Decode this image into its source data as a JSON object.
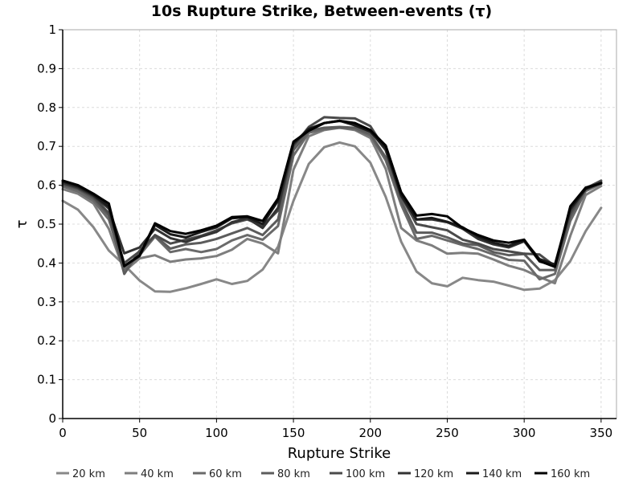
{
  "chart_data": {
    "type": "line",
    "title": "10s Rupture Strike, Between-events (τ)",
    "xlabel": "Rupture Strike",
    "ylabel": "τ",
    "xlim": [
      0,
      360
    ],
    "ylim": [
      0,
      1
    ],
    "xticks": [
      0,
      50,
      100,
      150,
      200,
      250,
      300,
      350
    ],
    "yticks": [
      0,
      0.1,
      0.2,
      0.3,
      0.4,
      0.5,
      0.6,
      0.7,
      0.8,
      0.9,
      1
    ],
    "grid": true,
    "legend_position": "bottom",
    "x": [
      0,
      10,
      20,
      30,
      40,
      50,
      60,
      70,
      80,
      90,
      100,
      110,
      120,
      130,
      140,
      150,
      160,
      170,
      180,
      190,
      200,
      210,
      220,
      230,
      240,
      250,
      260,
      270,
      280,
      290,
      300,
      310,
      320,
      330,
      340,
      350
    ],
    "series": [
      {
        "name": "20 km",
        "color": "#888888",
        "values": [
          0.56,
          0.537,
          0.492,
          0.432,
          0.395,
          0.355,
          0.327,
          0.326,
          0.335,
          0.346,
          0.358,
          0.346,
          0.354,
          0.383,
          0.442,
          0.56,
          0.655,
          0.698,
          0.71,
          0.7,
          0.658,
          0.57,
          0.455,
          0.378,
          0.348,
          0.34,
          0.362,
          0.356,
          0.352,
          0.342,
          0.331,
          0.334,
          0.356,
          0.405,
          0.482,
          0.542
        ]
      },
      {
        "name": "40 km",
        "color": "#7e7e7e",
        "values": [
          0.59,
          0.578,
          0.553,
          0.488,
          0.378,
          0.412,
          0.42,
          0.403,
          0.409,
          0.412,
          0.418,
          0.434,
          0.462,
          0.45,
          0.425,
          0.64,
          0.726,
          0.742,
          0.748,
          0.742,
          0.722,
          0.642,
          0.49,
          0.458,
          0.445,
          0.424,
          0.426,
          0.424,
          0.409,
          0.393,
          0.382,
          0.364,
          0.348,
          0.47,
          0.575,
          0.598
        ]
      },
      {
        "name": "60 km",
        "color": "#6a6a6a",
        "values": [
          0.597,
          0.584,
          0.56,
          0.512,
          0.385,
          0.42,
          0.468,
          0.428,
          0.436,
          0.428,
          0.436,
          0.458,
          0.472,
          0.46,
          0.495,
          0.676,
          0.735,
          0.744,
          0.748,
          0.744,
          0.728,
          0.664,
          0.55,
          0.462,
          0.47,
          0.458,
          0.446,
          0.436,
          0.422,
          0.408,
          0.406,
          0.358,
          0.372,
          0.508,
          0.585,
          0.604
        ]
      },
      {
        "name": "80 km",
        "color": "#5c5c5c",
        "values": [
          0.6,
          0.59,
          0.566,
          0.522,
          0.372,
          0.432,
          0.47,
          0.437,
          0.448,
          0.452,
          0.462,
          0.476,
          0.49,
          0.472,
          0.512,
          0.69,
          0.74,
          0.748,
          0.75,
          0.748,
          0.732,
          0.672,
          0.56,
          0.478,
          0.478,
          0.466,
          0.45,
          0.446,
          0.428,
          0.42,
          0.423,
          0.382,
          0.382,
          0.52,
          0.59,
          0.608
        ]
      },
      {
        "name": "100 km",
        "color": "#4a4a4a",
        "values": [
          0.604,
          0.592,
          0.57,
          0.528,
          0.4,
          0.43,
          0.472,
          0.45,
          0.46,
          0.47,
          0.484,
          0.502,
          0.512,
          0.496,
          0.535,
          0.7,
          0.75,
          0.775,
          0.773,
          0.772,
          0.752,
          0.69,
          0.572,
          0.5,
          0.492,
          0.484,
          0.46,
          0.45,
          0.436,
          0.43,
          0.424,
          0.422,
          0.392,
          0.528,
          0.592,
          0.612
        ]
      },
      {
        "name": "120 km",
        "color": "#333333",
        "values": [
          0.606,
          0.594,
          0.573,
          0.54,
          0.425,
          0.44,
          0.488,
          0.464,
          0.454,
          0.468,
          0.48,
          0.505,
          0.515,
          0.49,
          0.542,
          0.706,
          0.742,
          0.76,
          0.765,
          0.76,
          0.74,
          0.69,
          0.572,
          0.512,
          0.512,
          0.505,
          0.488,
          0.462,
          0.448,
          0.44,
          0.456,
          0.404,
          0.394,
          0.536,
          0.592,
          0.607
        ]
      },
      {
        "name": "140 km",
        "color": "#1a1a1a",
        "values": [
          0.61,
          0.597,
          0.575,
          0.545,
          0.392,
          0.418,
          0.498,
          0.474,
          0.466,
          0.48,
          0.492,
          0.515,
          0.518,
          0.5,
          0.56,
          0.708,
          0.745,
          0.76,
          0.766,
          0.754,
          0.738,
          0.696,
          0.575,
          0.512,
          0.516,
          0.506,
          0.492,
          0.468,
          0.452,
          0.444,
          0.458,
          0.41,
          0.396,
          0.54,
          0.59,
          0.606
        ]
      },
      {
        "name": "160 km",
        "color": "#000000",
        "values": [
          0.612,
          0.6,
          0.578,
          0.553,
          0.392,
          0.42,
          0.502,
          0.482,
          0.475,
          0.484,
          0.496,
          0.518,
          0.52,
          0.508,
          0.566,
          0.712,
          0.74,
          0.76,
          0.766,
          0.76,
          0.742,
          0.702,
          0.582,
          0.522,
          0.526,
          0.52,
          0.49,
          0.472,
          0.458,
          0.452,
          0.46,
          0.405,
          0.39,
          0.546,
          0.594,
          0.605
        ]
      }
    ]
  }
}
